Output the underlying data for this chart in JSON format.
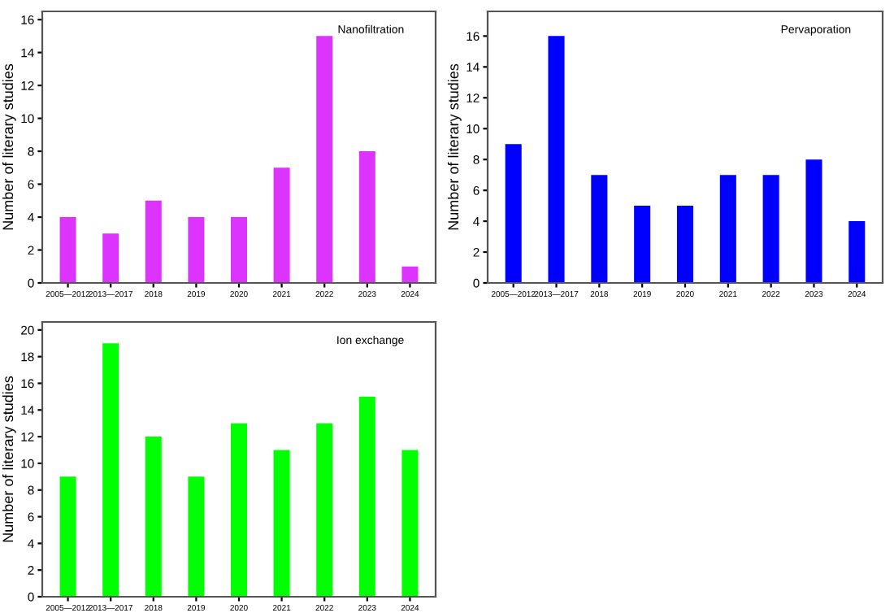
{
  "chart_data": [
    {
      "type": "bar",
      "title": "Nanofiltration",
      "ylabel": "Number of literary studies",
      "categories": [
        "2005—2012",
        "2013—2017",
        "2018",
        "2019",
        "2020",
        "2021",
        "2022",
        "2023",
        "2024"
      ],
      "values": [
        4,
        3,
        5,
        4,
        4,
        7,
        15,
        8,
        1
      ],
      "color": "#dd33ff",
      "ylim": [
        0,
        16.5
      ],
      "yticks": [
        0,
        2,
        4,
        6,
        8,
        10,
        12,
        14,
        16
      ],
      "grid": false
    },
    {
      "type": "bar",
      "title": "Pervaporation",
      "ylabel": "Number of literary studies",
      "categories": [
        "2005—2012",
        "2013—2017",
        "2018",
        "2019",
        "2020",
        "2021",
        "2022",
        "2023",
        "2024"
      ],
      "values": [
        9,
        16,
        7,
        5,
        5,
        7,
        7,
        8,
        4
      ],
      "color": "#0000ff",
      "ylim": [
        0,
        17.6
      ],
      "yticks": [
        0,
        2,
        4,
        6,
        8,
        10,
        12,
        14,
        16
      ],
      "grid": false
    },
    {
      "type": "bar",
      "title": "Ion exchange",
      "ylabel": "Number of literary studies",
      "categories": [
        "2005—2012",
        "2013—2017",
        "2018",
        "2019",
        "2020",
        "2021",
        "2022",
        "2023",
        "2024"
      ],
      "values": [
        9,
        19,
        12,
        9,
        13,
        11,
        13,
        15,
        11
      ],
      "color": "#00ff00",
      "ylim": [
        0,
        20.6
      ],
      "yticks": [
        0,
        2,
        4,
        6,
        8,
        10,
        12,
        14,
        16,
        18,
        20
      ],
      "grid": false
    }
  ]
}
